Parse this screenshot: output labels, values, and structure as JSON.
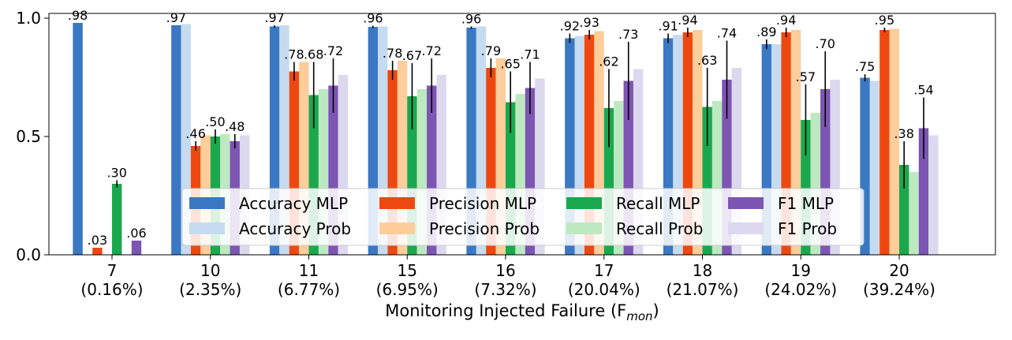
{
  "chart_data": {
    "type": "bar",
    "title": "",
    "xlabel": "Monitoring Injected Failure (F",
    "xlabel_sub": "mon",
    "xlabel_close": ")",
    "ylabel": "",
    "ylim": [
      0,
      1.02
    ],
    "yticks": [
      "0.0",
      "0.5",
      "1.0"
    ],
    "ytick_values": [
      0,
      0.5,
      1.0
    ],
    "categories": [
      "7",
      "10",
      "11",
      "15",
      "16",
      "17",
      "18",
      "19",
      "20"
    ],
    "category_sublabels": [
      "(0.16%)",
      "(2.35%)",
      "(6.77%)",
      "(6.95%)",
      "(7.32%)",
      "(20.04%)",
      "(21.07%)",
      "(24.02%)",
      "(39.24%)"
    ],
    "legend_position": "lower center",
    "series": [
      {
        "name": "Accuracy MLP",
        "color": "#3a78c3",
        "values": [
          0.98,
          0.97,
          0.965,
          0.963,
          0.96,
          0.915,
          0.915,
          0.89,
          0.748
        ],
        "errors": [
          0,
          0,
          0.005,
          0.005,
          0.005,
          0.02,
          0.02,
          0.02,
          0.015
        ],
        "labels": [
          ".98",
          ".97",
          ".97",
          ".96",
          ".96",
          ".92",
          ".91",
          ".89",
          ".75"
        ]
      },
      {
        "name": "Accuracy Prob",
        "color": "#c6dbf0",
        "values": [
          0,
          0.975,
          0.97,
          0.965,
          0.965,
          0.925,
          0.93,
          0.89,
          0.735
        ],
        "errors": [
          0,
          0,
          0,
          0,
          0,
          0,
          0,
          0,
          0
        ],
        "labels": [
          "",
          "",
          "",
          "",
          "",
          "",
          "",
          "",
          ""
        ]
      },
      {
        "name": "Precision MLP",
        "color": "#ee4811",
        "values": [
          0.03,
          0.46,
          0.775,
          0.78,
          0.79,
          0.93,
          0.94,
          0.94,
          0.95
        ],
        "errors": [
          0,
          0.02,
          0.04,
          0.04,
          0.04,
          0.02,
          0.02,
          0.02,
          0.01
        ],
        "labels": [
          ".03",
          ".46",
          ".78",
          ".78",
          ".79",
          ".93",
          ".94",
          ".94",
          ".95"
        ]
      },
      {
        "name": "Precision Prob",
        "color": "#fdcd9a",
        "values": [
          0,
          0.505,
          0.815,
          0.82,
          0.83,
          0.945,
          0.95,
          0.95,
          0.955
        ],
        "errors": [
          0,
          0,
          0,
          0,
          0,
          0,
          0,
          0,
          0
        ],
        "labels": [
          "",
          "",
          "",
          "",
          "",
          "",
          "",
          "",
          ""
        ]
      },
      {
        "name": "Recall MLP",
        "color": "#1aa84e",
        "values": [
          0.3,
          0.5,
          0.675,
          0.67,
          0.645,
          0.62,
          0.625,
          0.57,
          0.38
        ],
        "errors": [
          0.015,
          0.03,
          0.14,
          0.14,
          0.13,
          0.165,
          0.165,
          0.15,
          0.1
        ],
        "labels": [
          ".30",
          ".50",
          ".68",
          ".67",
          ".65",
          ".62",
          ".63",
          ".57",
          ".38"
        ]
      },
      {
        "name": "Recall Prob",
        "color": "#bde9c0",
        "values": [
          0,
          0.51,
          0.7,
          0.7,
          0.68,
          0.65,
          0.65,
          0.6,
          0.35
        ],
        "errors": [
          0,
          0,
          0,
          0,
          0,
          0,
          0,
          0,
          0
        ],
        "labels": [
          "",
          "",
          "",
          "",
          "",
          "",
          "",
          "",
          ""
        ]
      },
      {
        "name": "F1 MLP",
        "color": "#7d55b3",
        "values": [
          0.06,
          0.48,
          0.715,
          0.715,
          0.705,
          0.735,
          0.74,
          0.7,
          0.535
        ],
        "errors": [
          0,
          0.03,
          0.115,
          0.115,
          0.11,
          0.165,
          0.165,
          0.16,
          0.13
        ],
        "labels": [
          ".06",
          ".48",
          ".72",
          ".72",
          ".71",
          ".73",
          ".74",
          ".70",
          ".54"
        ]
      },
      {
        "name": "F1 Prob",
        "color": "#dcd8ee",
        "values": [
          0,
          0.505,
          0.76,
          0.76,
          0.745,
          0.785,
          0.79,
          0.74,
          0.505
        ],
        "errors": [
          0,
          0,
          0,
          0,
          0,
          0,
          0,
          0,
          0
        ],
        "labels": [
          "",
          "",
          "",
          "",
          "",
          "",
          "",
          "",
          ""
        ]
      }
    ],
    "legend_entries": [
      {
        "metric": "Accuracy",
        "model": "MLP",
        "color": "#3a78c3"
      },
      {
        "metric": "Accuracy",
        "model": "Prob",
        "color": "#c6dbf0"
      },
      {
        "metric": "Precision",
        "model": "MLP",
        "color": "#ee4811"
      },
      {
        "metric": "Precision",
        "model": "Prob",
        "color": "#fdcd9a"
      },
      {
        "metric": "Recall",
        "model": "MLP",
        "color": "#1aa84e"
      },
      {
        "metric": "Recall",
        "model": "Prob",
        "color": "#bde9c0"
      },
      {
        "metric": "F1",
        "model": "MLP",
        "color": "#7d55b3"
      },
      {
        "metric": "F1",
        "model": "Prob",
        "color": "#dcd8ee"
      }
    ]
  }
}
